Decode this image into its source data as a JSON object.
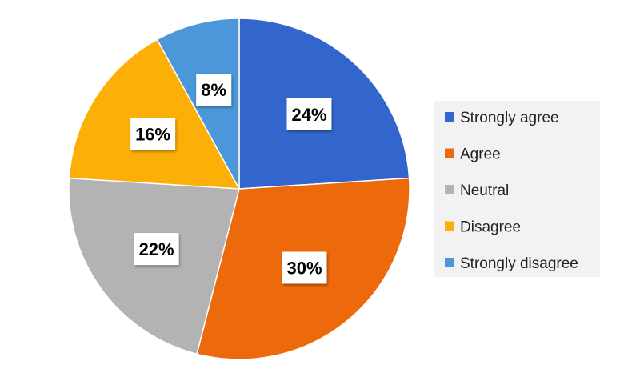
{
  "chart_data": {
    "type": "pie",
    "categories": [
      "Strongly agree",
      "Agree",
      "Neutral",
      "Disagree",
      "Strongly disagree"
    ],
    "values": [
      24,
      30,
      22,
      16,
      8
    ],
    "labels": [
      "24%",
      "30%",
      "22%",
      "16%",
      "8%"
    ],
    "colors": [
      "#3366cc",
      "#ec6a0c",
      "#b3b3b3",
      "#fbaf07",
      "#4c97d9"
    ],
    "legend_position": "right",
    "title": ""
  }
}
